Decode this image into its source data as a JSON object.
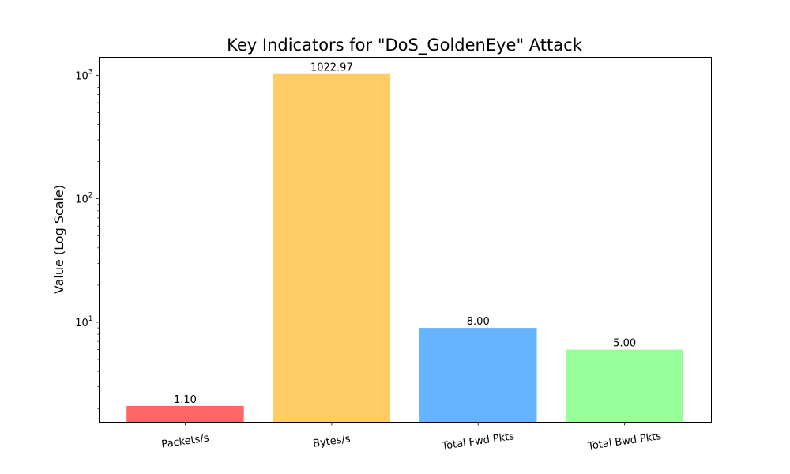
{
  "chart_data": {
    "type": "bar",
    "title": "Key Indicators for \"DoS_GoldenEye\" Attack",
    "xlabel": "",
    "ylabel": "Value (Log Scale)",
    "yscale": "log",
    "ylim": [
      1.55,
      1400
    ],
    "categories": [
      "Packets/s",
      "Bytes/s",
      "Total Fwd Pkts",
      "Total Bwd Pkts"
    ],
    "values": [
      2.1,
      1023.97,
      9.0,
      6.0
    ],
    "data_labels": [
      "1.10",
      "1022.97",
      "8.00",
      "5.00"
    ],
    "colors": [
      "#ff6666",
      "#ffcc66",
      "#66b3ff",
      "#99ff99"
    ],
    "y_ticks": [
      {
        "value": 10,
        "base": "10",
        "exp": "1"
      },
      {
        "value": 100,
        "base": "10",
        "exp": "2"
      },
      {
        "value": 1000,
        "base": "10",
        "exp": "3"
      }
    ],
    "grid": false,
    "legend": "none"
  }
}
